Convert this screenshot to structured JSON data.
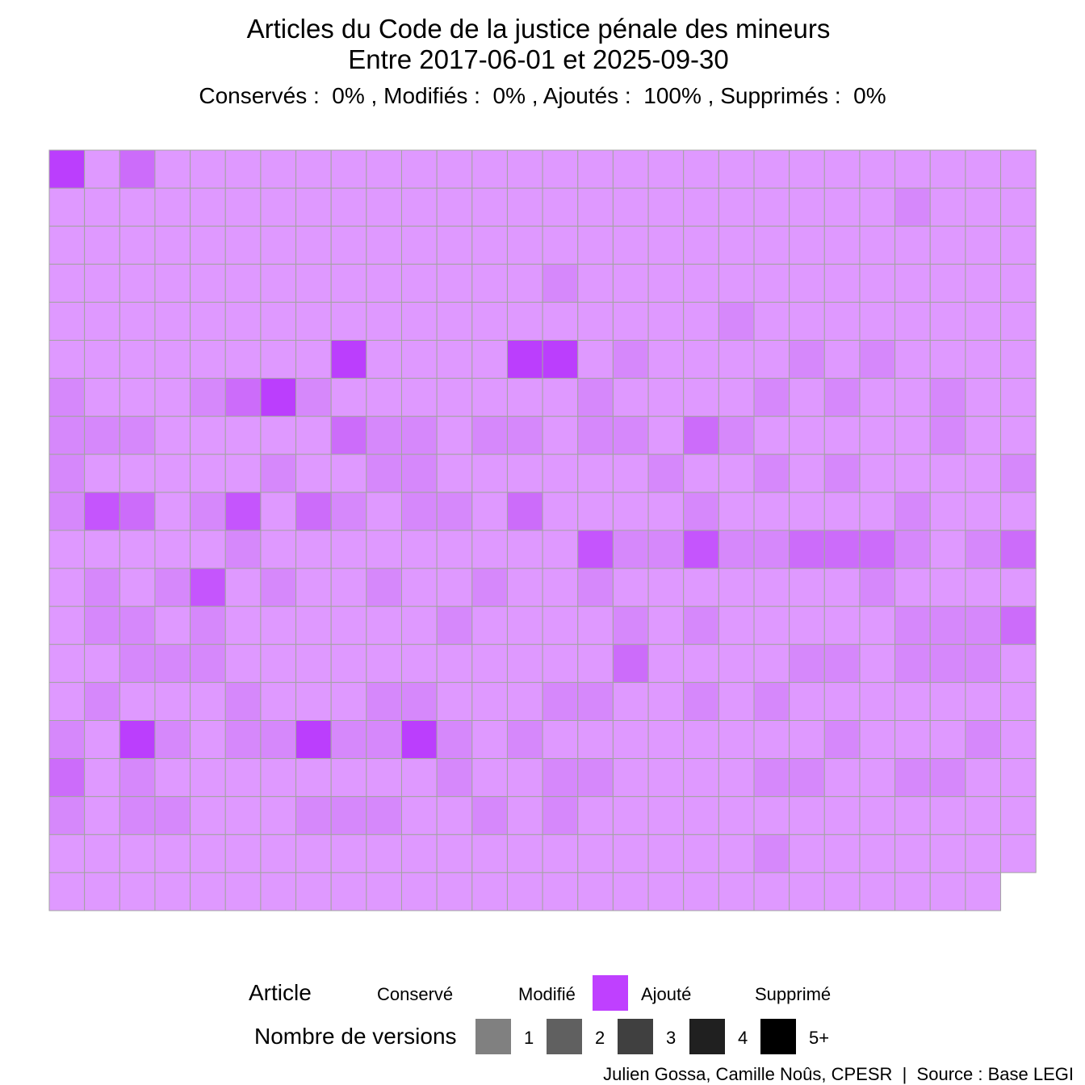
{
  "title_line1": "Articles du Code de la justice pénale des mineurs",
  "title_line2": "Entre 2017-06-01 et 2025-09-30",
  "subtitle": "Conservés :  0% , Modifiés :  0% , Ajoutés :  100% , Supprimés :  0%",
  "legend": {
    "article_title": "Article",
    "article_items": [
      {
        "label": "Conservé",
        "color": null
      },
      {
        "label": "Modifié",
        "color": null
      },
      {
        "label": "Ajouté",
        "color": "#bf40ff"
      },
      {
        "label": "Supprimé",
        "color": null
      }
    ],
    "versions_title": "Nombre de versions",
    "version_items": [
      {
        "label": "1",
        "color": "#808080"
      },
      {
        "label": "2",
        "color": "#606060"
      },
      {
        "label": "3",
        "color": "#404040"
      },
      {
        "label": "4",
        "color": "#202020"
      },
      {
        "label": "5+",
        "color": "#000000"
      }
    ]
  },
  "caption": "Julien Gossa, Camille Noûs, CPESR  |  Source : Base LEGI",
  "chart_data": {
    "type": "heatmap",
    "description_of_encoding": "waffle grid, one tile per article; all tiles are status Ajouté; shade encodes number of versions (1 = lightest, 5+ = darkest)",
    "columns": 28,
    "status": "Ajouté",
    "status_color": "#bf40ff",
    "version_levels": [
      "1",
      "2",
      "3",
      "4",
      "5+"
    ],
    "versions_by_row": [
      [
        5,
        1,
        3,
        1,
        1,
        1,
        1,
        1,
        1,
        1,
        1,
        1,
        1,
        1,
        1,
        1,
        1,
        1,
        1,
        1,
        1,
        1,
        1,
        1,
        1,
        1,
        1,
        1
      ],
      [
        1,
        1,
        1,
        1,
        1,
        1,
        1,
        1,
        1,
        1,
        1,
        1,
        1,
        1,
        1,
        1,
        1,
        1,
        1,
        1,
        1,
        1,
        1,
        1,
        2,
        1,
        1,
        1
      ],
      [
        1,
        1,
        1,
        1,
        1,
        1,
        1,
        1,
        1,
        1,
        1,
        1,
        1,
        1,
        1,
        1,
        1,
        1,
        1,
        1,
        1,
        1,
        1,
        1,
        1,
        1,
        1,
        1
      ],
      [
        1,
        1,
        1,
        1,
        1,
        1,
        1,
        1,
        1,
        1,
        1,
        1,
        1,
        1,
        2,
        1,
        1,
        1,
        1,
        1,
        1,
        1,
        1,
        1,
        1,
        1,
        1,
        1
      ],
      [
        1,
        1,
        1,
        1,
        1,
        1,
        1,
        1,
        1,
        1,
        1,
        1,
        1,
        1,
        1,
        1,
        1,
        1,
        1,
        2,
        1,
        1,
        1,
        1,
        1,
        1,
        1,
        1
      ],
      [
        1,
        1,
        1,
        1,
        1,
        1,
        1,
        1,
        5,
        1,
        1,
        1,
        1,
        5,
        5,
        1,
        2,
        1,
        1,
        1,
        1,
        2,
        1,
        2,
        1,
        1,
        1,
        1
      ],
      [
        2,
        1,
        1,
        1,
        2,
        3,
        5,
        2,
        1,
        1,
        1,
        1,
        1,
        1,
        1,
        2,
        1,
        1,
        1,
        1,
        2,
        1,
        2,
        1,
        1,
        2,
        1,
        1
      ],
      [
        2,
        2,
        2,
        1,
        1,
        1,
        1,
        1,
        3,
        2,
        2,
        1,
        2,
        2,
        1,
        2,
        2,
        1,
        3,
        2,
        1,
        1,
        1,
        1,
        1,
        2,
        1,
        1
      ],
      [
        2,
        1,
        1,
        1,
        1,
        1,
        2,
        1,
        1,
        2,
        2,
        1,
        1,
        1,
        1,
        1,
        1,
        2,
        1,
        1,
        2,
        1,
        2,
        1,
        1,
        1,
        1,
        2
      ],
      [
        2,
        4,
        3,
        1,
        2,
        4,
        1,
        3,
        2,
        1,
        2,
        2,
        1,
        3,
        1,
        1,
        1,
        1,
        2,
        1,
        1,
        1,
        1,
        1,
        2,
        1,
        1,
        1
      ],
      [
        1,
        1,
        1,
        1,
        1,
        2,
        1,
        1,
        1,
        1,
        1,
        1,
        1,
        1,
        1,
        4,
        2,
        2,
        4,
        2,
        2,
        3,
        3,
        3,
        2,
        1,
        2,
        3
      ],
      [
        1,
        2,
        1,
        2,
        4,
        1,
        2,
        1,
        1,
        2,
        1,
        1,
        2,
        1,
        1,
        2,
        1,
        1,
        1,
        1,
        1,
        1,
        1,
        2,
        1,
        1,
        1,
        1
      ],
      [
        1,
        2,
        2,
        1,
        2,
        1,
        1,
        1,
        1,
        1,
        1,
        2,
        1,
        1,
        1,
        1,
        2,
        1,
        2,
        1,
        1,
        1,
        1,
        1,
        2,
        2,
        2,
        3
      ],
      [
        1,
        1,
        2,
        2,
        2,
        1,
        1,
        1,
        1,
        1,
        1,
        1,
        1,
        1,
        1,
        1,
        3,
        1,
        1,
        1,
        1,
        2,
        2,
        1,
        2,
        2,
        2,
        1
      ],
      [
        1,
        2,
        1,
        1,
        1,
        2,
        1,
        1,
        1,
        2,
        2,
        1,
        1,
        1,
        2,
        2,
        1,
        1,
        2,
        1,
        2,
        1,
        1,
        1,
        1,
        1,
        1,
        1
      ],
      [
        2,
        1,
        5,
        2,
        1,
        2,
        2,
        5,
        2,
        2,
        5,
        2,
        1,
        2,
        1,
        1,
        1,
        1,
        1,
        1,
        1,
        1,
        2,
        1,
        1,
        1,
        2,
        1
      ],
      [
        3,
        1,
        2,
        1,
        1,
        1,
        1,
        1,
        1,
        1,
        1,
        2,
        1,
        1,
        2,
        2,
        1,
        1,
        1,
        1,
        2,
        2,
        1,
        1,
        2,
        2,
        1,
        1
      ],
      [
        2,
        1,
        2,
        2,
        1,
        1,
        1,
        2,
        2,
        2,
        1,
        1,
        2,
        1,
        2,
        1,
        1,
        1,
        1,
        1,
        1,
        1,
        1,
        1,
        1,
        1,
        1,
        1
      ],
      [
        1,
        1,
        1,
        1,
        1,
        1,
        1,
        1,
        1,
        1,
        1,
        1,
        1,
        1,
        1,
        1,
        1,
        1,
        1,
        1,
        2,
        1,
        1,
        1,
        1,
        1,
        1,
        1
      ],
      [
        1,
        1,
        1,
        1,
        1,
        1,
        1,
        1,
        1,
        1,
        1,
        1,
        1,
        1,
        1,
        1,
        1,
        1,
        1,
        1,
        1,
        1,
        1,
        1,
        1,
        1,
        1
      ]
    ]
  }
}
